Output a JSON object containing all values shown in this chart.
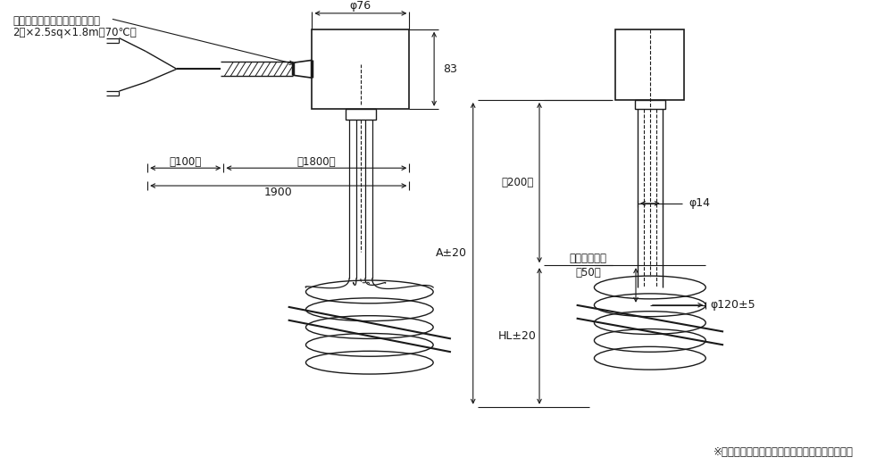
{
  "bg_color": "#ffffff",
  "line_color": "#1a1a1a",
  "text_color": "#1a1a1a",
  "figsize": [
    10.0,
    5.31
  ],
  "dpi": 100,
  "annotations": {
    "cable_label1": "ビニールキャブタイヤケーブル",
    "cable_label2": "2芯×2.5sq×1.8m（70℃）",
    "dim_100": "（100）",
    "dim_1800": "（1800）",
    "dim_1900": "1900",
    "dim_phi76": "φ76",
    "dim_83": "83",
    "dim_200": "（200）",
    "dim_A": "A±20",
    "dim_HL": "HL±20",
    "dim_liquid": "最低液面高さ",
    "dim_50": "（50）",
    "dim_phi14": "φ14",
    "dim_phi120": "φ120±5",
    "note": "※最低液面高さ以下では使用しないでください。"
  }
}
